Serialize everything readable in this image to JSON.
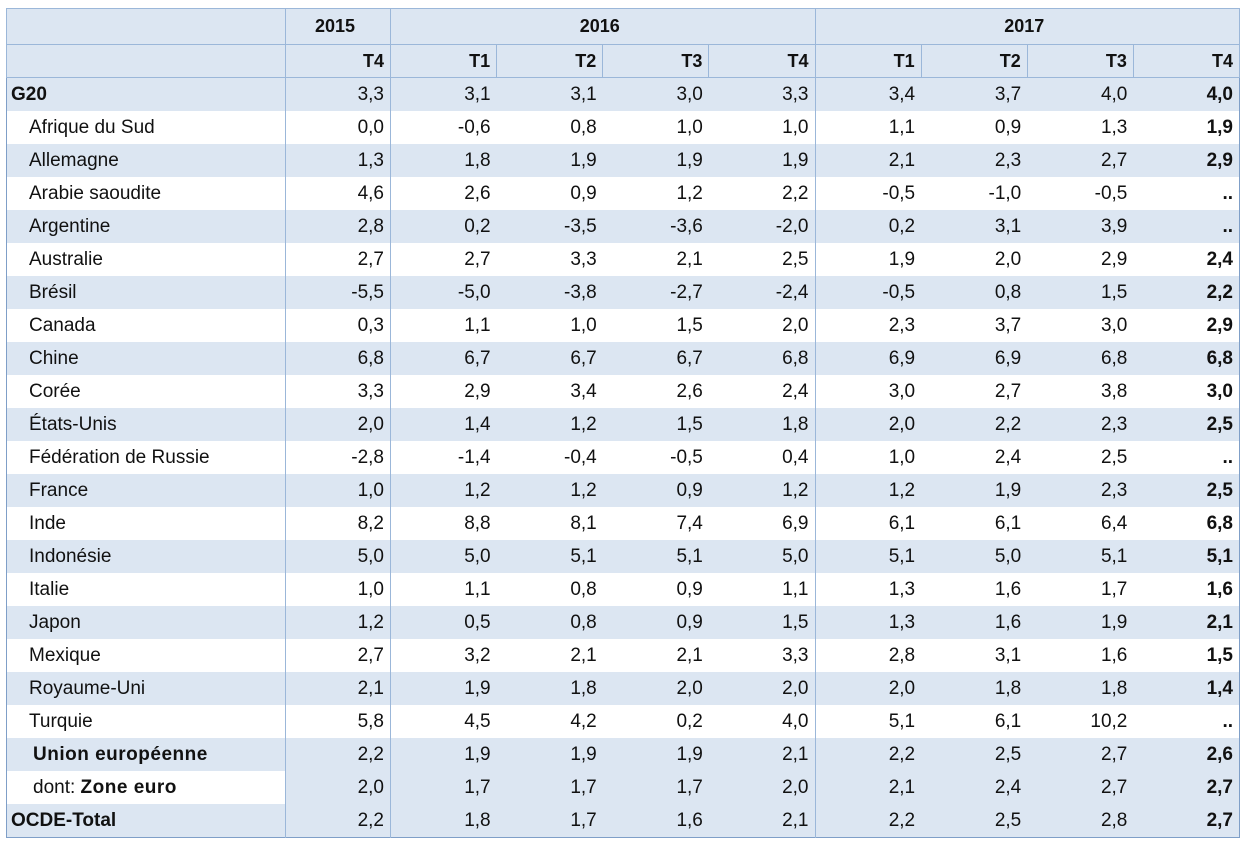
{
  "table": {
    "header": {
      "years": [
        "2015",
        "2016",
        "2017"
      ],
      "quarters": [
        "T4",
        "T1",
        "T2",
        "T3",
        "T4",
        "T1",
        "T2",
        "T3",
        "T4"
      ]
    },
    "rows": [
      {
        "label": "G20",
        "values": [
          "3,3",
          "3,1",
          "3,1",
          "3,0",
          "3,3",
          "3,4",
          "3,7",
          "4,0",
          "4,0"
        ]
      },
      {
        "label": "Afrique du Sud",
        "values": [
          "0,0",
          "-0,6",
          "0,8",
          "1,0",
          "1,0",
          "1,1",
          "0,9",
          "1,3",
          "1,9"
        ]
      },
      {
        "label": "Allemagne",
        "values": [
          "1,3",
          "1,8",
          "1,9",
          "1,9",
          "1,9",
          "2,1",
          "2,3",
          "2,7",
          "2,9"
        ]
      },
      {
        "label": "Arabie saoudite",
        "values": [
          "4,6",
          "2,6",
          "0,9",
          "1,2",
          "2,2",
          "-0,5",
          "-1,0",
          "-0,5",
          ".."
        ]
      },
      {
        "label": "Argentine",
        "values": [
          "2,8",
          "0,2",
          "-3,5",
          "-3,6",
          "-2,0",
          "0,2",
          "3,1",
          "3,9",
          ".."
        ]
      },
      {
        "label": "Australie",
        "values": [
          "2,7",
          "2,7",
          "3,3",
          "2,1",
          "2,5",
          "1,9",
          "2,0",
          "2,9",
          "2,4"
        ]
      },
      {
        "label": "Brésil",
        "values": [
          "-5,5",
          "-5,0",
          "-3,8",
          "-2,7",
          "-2,4",
          "-0,5",
          "0,8",
          "1,5",
          "2,2"
        ]
      },
      {
        "label": "Canada",
        "values": [
          "0,3",
          "1,1",
          "1,0",
          "1,5",
          "2,0",
          "2,3",
          "3,7",
          "3,0",
          "2,9"
        ]
      },
      {
        "label": "Chine",
        "values": [
          "6,8",
          "6,7",
          "6,7",
          "6,7",
          "6,8",
          "6,9",
          "6,9",
          "6,8",
          "6,8"
        ]
      },
      {
        "label": "Corée",
        "values": [
          "3,3",
          "2,9",
          "3,4",
          "2,6",
          "2,4",
          "3,0",
          "2,7",
          "3,8",
          "3,0"
        ]
      },
      {
        "label": "États-Unis",
        "values": [
          "2,0",
          "1,4",
          "1,2",
          "1,5",
          "1,8",
          "2,0",
          "2,2",
          "2,3",
          "2,5"
        ]
      },
      {
        "label": "Fédération de Russie",
        "values": [
          "-2,8",
          "-1,4",
          "-0,4",
          "-0,5",
          "0,4",
          "1,0",
          "2,4",
          "2,5",
          ".."
        ]
      },
      {
        "label": "France",
        "values": [
          "1,0",
          "1,2",
          "1,2",
          "0,9",
          "1,2",
          "1,2",
          "1,9",
          "2,3",
          "2,5"
        ]
      },
      {
        "label": "Inde",
        "values": [
          "8,2",
          "8,8",
          "8,1",
          "7,4",
          "6,9",
          "6,1",
          "6,1",
          "6,4",
          "6,8"
        ]
      },
      {
        "label": "Indonésie",
        "values": [
          "5,0",
          "5,0",
          "5,1",
          "5,1",
          "5,0",
          "5,1",
          "5,0",
          "5,1",
          "5,1"
        ]
      },
      {
        "label": "Italie",
        "values": [
          "1,0",
          "1,1",
          "0,8",
          "0,9",
          "1,1",
          "1,3",
          "1,6",
          "1,7",
          "1,6"
        ]
      },
      {
        "label": "Japon",
        "values": [
          "1,2",
          "0,5",
          "0,8",
          "0,9",
          "1,5",
          "1,3",
          "1,6",
          "1,9",
          "2,1"
        ]
      },
      {
        "label": "Mexique",
        "values": [
          "2,7",
          "3,2",
          "2,1",
          "2,1",
          "3,3",
          "2,8",
          "3,1",
          "1,6",
          "1,5"
        ]
      },
      {
        "label": "Royaume-Uni",
        "values": [
          "2,1",
          "1,9",
          "1,8",
          "2,0",
          "2,0",
          "2,0",
          "1,8",
          "1,8",
          "1,4"
        ]
      },
      {
        "label": "Turquie",
        "values": [
          "5,8",
          "4,5",
          "4,2",
          "0,2",
          "4,0",
          "5,1",
          "6,1",
          "10,2",
          ".."
        ]
      },
      {
        "label": "Union européenne",
        "values": [
          "2,2",
          "1,9",
          "1,9",
          "1,9",
          "2,1",
          "2,2",
          "2,5",
          "2,7",
          "2,6"
        ]
      },
      {
        "prefix": "dont:",
        "label": "Zone euro",
        "values": [
          "2,0",
          "1,7",
          "1,7",
          "1,7",
          "2,0",
          "2,1",
          "2,4",
          "2,7",
          "2,7"
        ]
      },
      {
        "label": "OCDE-Total",
        "values": [
          "2,2",
          "1,8",
          "1,7",
          "1,6",
          "2,1",
          "2,2",
          "2,5",
          "2,8",
          "2,7"
        ]
      }
    ]
  }
}
